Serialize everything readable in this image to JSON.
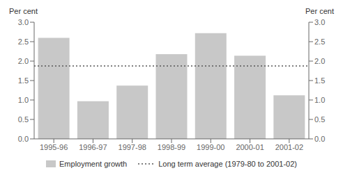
{
  "chart_data": {
    "type": "bar",
    "categories": [
      "1995-96",
      "1996-97",
      "1997-98",
      "1998-99",
      "1999-00",
      "2000-01",
      "2001-02"
    ],
    "series": [
      {
        "name": "Employment growth",
        "color": "#c8c8c8",
        "values": [
          2.6,
          0.97,
          1.37,
          2.18,
          2.72,
          2.14,
          1.12
        ]
      }
    ],
    "average_line": {
      "name": "Long term average (1979-80 to 2001-02)",
      "value": 1.875,
      "color": "#555555",
      "line_style": "dotted"
    },
    "ylabel": "Per cent",
    "y2label": "Per cent",
    "ylim": [
      0.0,
      3.0
    ],
    "yticks": [
      {
        "value": 0.0,
        "label": "0.0"
      },
      0.5,
      {
        "value": 1.0,
        "label": "1.0"
      },
      1.5,
      {
        "value": 2.0,
        "label": "2.0"
      },
      2.5,
      {
        "value": 3.0,
        "label": "3.0"
      }
    ],
    "y2lim": [
      0.0,
      3.0
    ],
    "y2ticks": [
      {
        "value": 0.0,
        "label": "0.0"
      },
      0.5,
      {
        "value": 1.0,
        "label": "1.0"
      },
      1.5,
      {
        "value": 2.0,
        "label": "2.0"
      },
      2.5,
      {
        "value": 3.0,
        "label": "3.0"
      }
    ],
    "grid": false,
    "legend": "bottom"
  }
}
